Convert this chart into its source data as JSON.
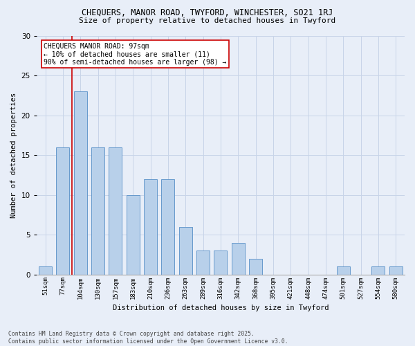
{
  "title_line1": "CHEQUERS, MANOR ROAD, TWYFORD, WINCHESTER, SO21 1RJ",
  "title_line2": "Size of property relative to detached houses in Twyford",
  "xlabel": "Distribution of detached houses by size in Twyford",
  "ylabel": "Number of detached properties",
  "footnote1": "Contains HM Land Registry data © Crown copyright and database right 2025.",
  "footnote2": "Contains public sector information licensed under the Open Government Licence v3.0.",
  "bar_labels": [
    "51sqm",
    "77sqm",
    "104sqm",
    "130sqm",
    "157sqm",
    "183sqm",
    "210sqm",
    "236sqm",
    "263sqm",
    "289sqm",
    "316sqm",
    "342sqm",
    "368sqm",
    "395sqm",
    "421sqm",
    "448sqm",
    "474sqm",
    "501sqm",
    "527sqm",
    "554sqm",
    "580sqm"
  ],
  "bar_values": [
    1,
    16,
    23,
    16,
    16,
    10,
    12,
    12,
    6,
    3,
    3,
    4,
    2,
    0,
    0,
    0,
    0,
    1,
    0,
    1,
    1
  ],
  "bar_color": "#b8d0ea",
  "bar_edge_color": "#6699cc",
  "grid_color": "#c8d4e8",
  "background_color": "#e8eef8",
  "vline_color": "#cc0000",
  "vline_x_index": 1.5,
  "annotation_text": "CHEQUERS MANOR ROAD: 97sqm\n← 10% of detached houses are smaller (11)\n90% of semi-detached houses are larger (98) →",
  "annotation_box_facecolor": "#ffffff",
  "annotation_box_edgecolor": "#cc0000",
  "ylim": [
    0,
    30
  ],
  "yticks": [
    0,
    5,
    10,
    15,
    20,
    25,
    30
  ]
}
